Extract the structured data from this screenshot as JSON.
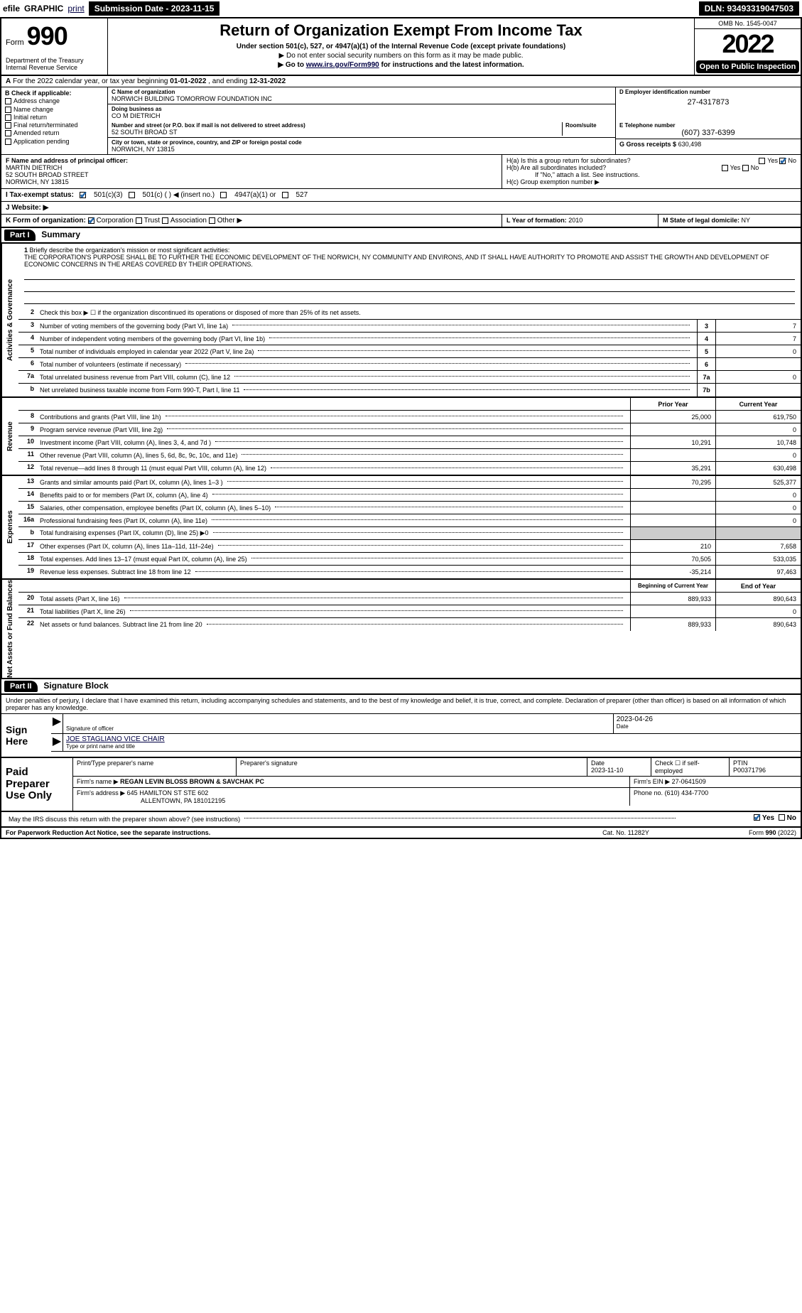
{
  "topbar": {
    "efile": "efile",
    "graphic": "GRAPHIC",
    "print": "print",
    "submission": "Submission Date - 2023-11-15",
    "dln": "DLN: 93493319047503"
  },
  "header": {
    "form_word": "Form",
    "form_num": "990",
    "title": "Return of Organization Exempt From Income Tax",
    "sub": "Under section 501(c), 527, or 4947(a)(1) of the Internal Revenue Code (except private foundations)",
    "sub2": "▶ Do not enter social security numbers on this form as it may be made public.",
    "sub3_pre": "▶ Go to ",
    "sub3_link": "www.irs.gov/Form990",
    "sub3_post": " for instructions and the latest information.",
    "dept": "Department of the Treasury\nInternal Revenue Service",
    "omb": "OMB No. 1545-0047",
    "year": "2022",
    "open": "Open to Public Inspection"
  },
  "rowA": {
    "a_label": "A",
    "text_pre": "For the 2022 calendar year, or tax year beginning ",
    "begin": "01-01-2022",
    "mid": " , and ending ",
    "end": "12-31-2022"
  },
  "B": {
    "hdr": "B Check if applicable:",
    "items": [
      "Address change",
      "Name change",
      "Initial return",
      "Final return/terminated",
      "Amended return",
      "Application pending"
    ]
  },
  "C": {
    "name_lbl": "C Name of organization",
    "name": "NORWICH BUILDING TOMORROW FOUNDATION INC",
    "dba_lbl": "Doing business as",
    "dba": "CO M DIETRICH",
    "addr_lbl": "Number and street (or P.O. box if mail is not delivered to street address)",
    "addr": "52 SOUTH BROAD ST",
    "room_lbl": "Room/suite",
    "city_lbl": "City or town, state or province, country, and ZIP or foreign postal code",
    "city": "NORWICH, NY  13815"
  },
  "D": {
    "lbl": "D Employer identification number",
    "val": "27-4317873"
  },
  "E": {
    "lbl": "E Telephone number",
    "val": "(607) 337-6399"
  },
  "G": {
    "lbl": "G Gross receipts $",
    "val": "630,498"
  },
  "F": {
    "lbl": "F  Name and address of principal officer:",
    "name": "MARTIN DIETRICH",
    "addr1": "52 SOUTH BROAD STREET",
    "addr2": "NORWICH, NY  13815"
  },
  "H": {
    "a": "H(a)  Is this a group return for subordinates?",
    "a_ans_yes": "Yes",
    "a_ans_no": "No",
    "b": "H(b)  Are all subordinates included?",
    "b_ans_yes": "Yes",
    "b_ans_no": "No",
    "b_note": "If \"No,\" attach a list. See instructions.",
    "c": "H(c)  Group exemption number ▶"
  },
  "I": {
    "lbl": "I   Tax-exempt status:",
    "o1": "501(c)(3)",
    "o2": "501(c) (  ) ◀ (insert no.)",
    "o3": "4947(a)(1) or",
    "o4": "527"
  },
  "J": {
    "lbl": "J   Website: ▶"
  },
  "K": {
    "lbl": "K Form of organization:",
    "o1": "Corporation",
    "o2": "Trust",
    "o3": "Association",
    "o4": "Other ▶"
  },
  "L": {
    "lbl": "L Year of formation:",
    "val": "2010"
  },
  "M": {
    "lbl": "M State of legal domicile:",
    "val": "NY"
  },
  "partI": {
    "tag": "Part I",
    "title": "Summary"
  },
  "mission": {
    "num": "1",
    "lbl": "Briefly describe the organization's mission or most significant activities:",
    "text": "THE CORPORATION'S PURPOSE SHALL BE TO FURTHER THE ECONOMIC DEVELOPMENT OF THE NORWICH, NY COMMUNITY AND ENVIRONS, AND IT SHALL HAVE AUTHORITY TO PROMOTE AND ASSIST THE GROWTH AND DEVELOPMENT OF ECONOMIC CONCERNS IN THE AREAS COVERED BY THEIR OPERATIONS."
  },
  "gov_lines": [
    {
      "n": "2",
      "t": "Check this box ▶ ☐ if the organization discontinued its operations or disposed of more than 25% of its net assets.",
      "b": "",
      "v": ""
    },
    {
      "n": "3",
      "t": "Number of voting members of the governing body (Part VI, line 1a)",
      "b": "3",
      "v": "7"
    },
    {
      "n": "4",
      "t": "Number of independent voting members of the governing body (Part VI, line 1b)",
      "b": "4",
      "v": "7"
    },
    {
      "n": "5",
      "t": "Total number of individuals employed in calendar year 2022 (Part V, line 2a)",
      "b": "5",
      "v": "0"
    },
    {
      "n": "6",
      "t": "Total number of volunteers (estimate if necessary)",
      "b": "6",
      "v": ""
    },
    {
      "n": "7a",
      "t": "Total unrelated business revenue from Part VIII, column (C), line 12",
      "b": "7a",
      "v": "0"
    },
    {
      "n": "b",
      "t": "Net unrelated business taxable income from Form 990-T, Part I, line 11",
      "b": "7b",
      "v": ""
    }
  ],
  "vtabs": {
    "gov": "Activities & Governance",
    "rev": "Revenue",
    "exp": "Expenses",
    "net": "Net Assets or Fund Balances"
  },
  "year_hdr": {
    "prior": "Prior Year",
    "curr": "Current Year"
  },
  "rev_lines": [
    {
      "n": "8",
      "t": "Contributions and grants (Part VIII, line 1h)",
      "p": "25,000",
      "c": "619,750"
    },
    {
      "n": "9",
      "t": "Program service revenue (Part VIII, line 2g)",
      "p": "",
      "c": "0"
    },
    {
      "n": "10",
      "t": "Investment income (Part VIII, column (A), lines 3, 4, and 7d )",
      "p": "10,291",
      "c": "10,748"
    },
    {
      "n": "11",
      "t": "Other revenue (Part VIII, column (A), lines 5, 6d, 8c, 9c, 10c, and 11e)",
      "p": "",
      "c": "0"
    },
    {
      "n": "12",
      "t": "Total revenue—add lines 8 through 11 (must equal Part VIII, column (A), line 12)",
      "p": "35,291",
      "c": "630,498"
    }
  ],
  "exp_lines": [
    {
      "n": "13",
      "t": "Grants and similar amounts paid (Part IX, column (A), lines 1–3 )",
      "p": "70,295",
      "c": "525,377"
    },
    {
      "n": "14",
      "t": "Benefits paid to or for members (Part IX, column (A), line 4)",
      "p": "",
      "c": "0"
    },
    {
      "n": "15",
      "t": "Salaries, other compensation, employee benefits (Part IX, column (A), lines 5–10)",
      "p": "",
      "c": "0"
    },
    {
      "n": "16a",
      "t": "Professional fundraising fees (Part IX, column (A), line 11e)",
      "p": "",
      "c": "0"
    },
    {
      "n": "b",
      "t": "Total fundraising expenses (Part IX, column (D), line 25) ▶0",
      "p": "__GREY__",
      "c": "__GREY__"
    },
    {
      "n": "17",
      "t": "Other expenses (Part IX, column (A), lines 11a–11d, 11f–24e)",
      "p": "210",
      "c": "7,658"
    },
    {
      "n": "18",
      "t": "Total expenses. Add lines 13–17 (must equal Part IX, column (A), line 25)",
      "p": "70,505",
      "c": "533,035"
    },
    {
      "n": "19",
      "t": "Revenue less expenses. Subtract line 18 from line 12",
      "p": "-35,214",
      "c": "97,463"
    }
  ],
  "net_hdr": {
    "beg": "Beginning of Current Year",
    "end": "End of Year"
  },
  "net_lines": [
    {
      "n": "20",
      "t": "Total assets (Part X, line 16)",
      "p": "889,933",
      "c": "890,643"
    },
    {
      "n": "21",
      "t": "Total liabilities (Part X, line 26)",
      "p": "",
      "c": "0"
    },
    {
      "n": "22",
      "t": "Net assets or fund balances. Subtract line 21 from line 20",
      "p": "889,933",
      "c": "890,643"
    }
  ],
  "partII": {
    "tag": "Part II",
    "title": "Signature Block"
  },
  "sig": {
    "decl": "Under penalties of perjury, I declare that I have examined this return, including accompanying schedules and statements, and to the best of my knowledge and belief, it is true, correct, and complete. Declaration of preparer (other than officer) is based on all information of which preparer has any knowledge.",
    "sign_here": "Sign Here",
    "sig_officer_lbl": "Signature of officer",
    "date_lbl": "Date",
    "date_val": "2023-04-26",
    "name_lbl": "Type or print name and title",
    "name_val": "JOE STAGLIANO  VICE CHAIR"
  },
  "paid": {
    "lbl": "Paid Preparer Use Only",
    "h1": "Print/Type preparer's name",
    "h2": "Preparer's signature",
    "h3": "Date",
    "h3v": "2023-11-10",
    "h4": "Check ☐ if self-employed",
    "h5": "PTIN",
    "h5v": "P00371796",
    "firm_lbl": "Firm's name   ▶",
    "firm": "REGAN LEVIN BLOSS BROWN & SAVCHAK PC",
    "ein_lbl": "Firm's EIN ▶",
    "ein": "27-0641509",
    "addr_lbl": "Firm's address ▶",
    "addr1": "645 HAMILTON ST STE 602",
    "addr2": "ALLENTOWN, PA  181012195",
    "phone_lbl": "Phone no.",
    "phone": "(610) 434-7700"
  },
  "discuss": {
    "q": "May the IRS discuss this return with the preparer shown above? (see instructions)",
    "yes": "Yes",
    "no": "No"
  },
  "footer": {
    "l": "For Paperwork Reduction Act Notice, see the separate instructions.",
    "m": "Cat. No. 11282Y",
    "r": "Form 990 (2022)"
  },
  "colors": {
    "accent": "#2266aa"
  }
}
